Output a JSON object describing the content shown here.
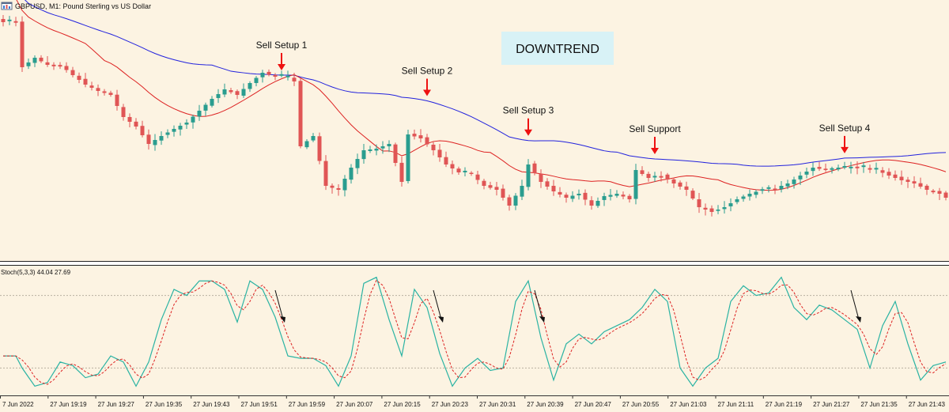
{
  "window": {
    "title": "GBPUSD, M1:  Pound Sterling vs US Dollar",
    "icon_name": "chart-window-icon"
  },
  "annotations": {
    "trend_label": "DOWNTREND",
    "setups": [
      {
        "label": "Sell Setup 1",
        "bar": 44
      },
      {
        "label": "Sell Setup 2",
        "bar": 67
      },
      {
        "label": "Sell Setup 3",
        "bar": 83
      },
      {
        "label": "Sell Support",
        "bar": 103
      },
      {
        "label": "Sell Setup 4",
        "bar": 133
      }
    ],
    "stoch_arrow_bars": [
      44,
      69,
      85,
      135
    ]
  },
  "stochastic": {
    "label": "Stoch(5,3,3) 44.04 27.69",
    "levels": [
      80,
      20
    ]
  },
  "colors": {
    "background": "#fcf3e2",
    "bull": "#2a9d8f",
    "bear": "#e05555",
    "ma_fast": "#dd2222",
    "ma_slow": "#2222dd",
    "stoch_main": "#2ab3a3",
    "stoch_signal": "#dd2222",
    "arrow": "#ee1111",
    "trend_box": "#d8f2f6"
  },
  "chart_data": {
    "type": "candlestick",
    "symbol": "GBPUSD",
    "timeframe": "M1",
    "time_labels": [
      "7 Jun 2022",
      "27 Jun 19:19",
      "27 Jun 19:27",
      "27 Jun 19:35",
      "27 Jun 19:43",
      "27 Jun 19:51",
      "27 Jun 19:59",
      "27 Jun 20:07",
      "27 Jun 20:15",
      "27 Jun 20:23",
      "27 Jun 20:31",
      "27 Jun 20:39",
      "27 Jun 20:47",
      "27 Jun 20:55",
      "27 Jun 21:03",
      "27 Jun 21:11",
      "27 Jun 21:19",
      "27 Jun 21:27",
      "27 Jun 21:35",
      "27 Jun 21:43"
    ],
    "close_path": [
      [
        0,
        28
      ],
      [
        2,
        28
      ],
      [
        3,
        85
      ],
      [
        5,
        73
      ],
      [
        7,
        82
      ],
      [
        9,
        82
      ],
      [
        11,
        95
      ],
      [
        13,
        107
      ],
      [
        15,
        115
      ],
      [
        17,
        120
      ],
      [
        19,
        148
      ],
      [
        21,
        160
      ],
      [
        23,
        182
      ],
      [
        25,
        172
      ],
      [
        27,
        163
      ],
      [
        29,
        155
      ],
      [
        31,
        140
      ],
      [
        33,
        125
      ],
      [
        35,
        113
      ],
      [
        37,
        120
      ],
      [
        39,
        105
      ],
      [
        41,
        92
      ],
      [
        43,
        97
      ],
      [
        45,
        97
      ],
      [
        46,
        103
      ],
      [
        47,
        185
      ],
      [
        49,
        172
      ],
      [
        51,
        235
      ],
      [
        53,
        240
      ],
      [
        55,
        212
      ],
      [
        57,
        190
      ],
      [
        59,
        188
      ],
      [
        61,
        182
      ],
      [
        63,
        230
      ],
      [
        64,
        170
      ],
      [
        66,
        175
      ],
      [
        68,
        190
      ],
      [
        70,
        208
      ],
      [
        72,
        218
      ],
      [
        74,
        220
      ],
      [
        76,
        235
      ],
      [
        78,
        240
      ],
      [
        80,
        260
      ],
      [
        82,
        235
      ],
      [
        83,
        208
      ],
      [
        85,
        230
      ],
      [
        87,
        242
      ],
      [
        89,
        250
      ],
      [
        91,
        245
      ],
      [
        93,
        260
      ],
      [
        95,
        248
      ],
      [
        97,
        245
      ],
      [
        99,
        252
      ],
      [
        100,
        215
      ],
      [
        102,
        225
      ],
      [
        104,
        222
      ],
      [
        106,
        232
      ],
      [
        108,
        240
      ],
      [
        110,
        262
      ],
      [
        112,
        268
      ],
      [
        114,
        262
      ],
      [
        116,
        252
      ],
      [
        118,
        245
      ],
      [
        120,
        240
      ],
      [
        122,
        238
      ],
      [
        124,
        232
      ],
      [
        126,
        222
      ],
      [
        128,
        212
      ],
      [
        130,
        215
      ],
      [
        132,
        212
      ],
      [
        134,
        212
      ],
      [
        136,
        212
      ],
      [
        138,
        215
      ],
      [
        140,
        222
      ],
      [
        142,
        228
      ],
      [
        144,
        232
      ],
      [
        146,
        240
      ],
      [
        148,
        245
      ],
      [
        149,
        250
      ]
    ],
    "stoch_main_path": [
      [
        0,
        30
      ],
      [
        2,
        30
      ],
      [
        3,
        20
      ],
      [
        5,
        5
      ],
      [
        7,
        8
      ],
      [
        9,
        25
      ],
      [
        11,
        22
      ],
      [
        13,
        12
      ],
      [
        15,
        15
      ],
      [
        17,
        30
      ],
      [
        19,
        25
      ],
      [
        21,
        5
      ],
      [
        23,
        25
      ],
      [
        25,
        60
      ],
      [
        27,
        85
      ],
      [
        29,
        80
      ],
      [
        31,
        92
      ],
      [
        33,
        92
      ],
      [
        35,
        85
      ],
      [
        37,
        58
      ],
      [
        39,
        92
      ],
      [
        41,
        85
      ],
      [
        43,
        62
      ],
      [
        45,
        30
      ],
      [
        47,
        28
      ],
      [
        49,
        28
      ],
      [
        51,
        22
      ],
      [
        53,
        5
      ],
      [
        55,
        30
      ],
      [
        57,
        90
      ],
      [
        59,
        95
      ],
      [
        61,
        60
      ],
      [
        63,
        30
      ],
      [
        65,
        85
      ],
      [
        67,
        70
      ],
      [
        69,
        32
      ],
      [
        71,
        5
      ],
      [
        73,
        20
      ],
      [
        75,
        28
      ],
      [
        77,
        18
      ],
      [
        79,
        20
      ],
      [
        81,
        75
      ],
      [
        83,
        92
      ],
      [
        85,
        45
      ],
      [
        87,
        10
      ],
      [
        89,
        40
      ],
      [
        91,
        48
      ],
      [
        93,
        40
      ],
      [
        95,
        50
      ],
      [
        97,
        55
      ],
      [
        99,
        60
      ],
      [
        101,
        70
      ],
      [
        103,
        85
      ],
      [
        105,
        75
      ],
      [
        107,
        20
      ],
      [
        109,
        5
      ],
      [
        111,
        20
      ],
      [
        113,
        28
      ],
      [
        115,
        75
      ],
      [
        117,
        88
      ],
      [
        119,
        80
      ],
      [
        121,
        82
      ],
      [
        123,
        95
      ],
      [
        125,
        70
      ],
      [
        127,
        60
      ],
      [
        129,
        72
      ],
      [
        131,
        68
      ],
      [
        133,
        60
      ],
      [
        135,
        52
      ],
      [
        137,
        20
      ],
      [
        139,
        55
      ],
      [
        141,
        75
      ],
      [
        143,
        40
      ],
      [
        145,
        10
      ],
      [
        147,
        22
      ],
      [
        149,
        25
      ]
    ],
    "ylim": [
      0,
      100
    ],
    "levels": [
      80,
      20
    ]
  }
}
